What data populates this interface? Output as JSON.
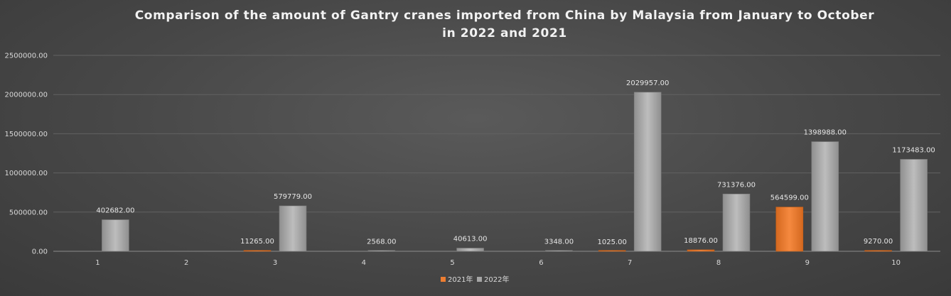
{
  "chart_data": {
    "type": "bar",
    "title_line1": "Comparison of the amount of Gantry cranes imported from China by Malaysia from January to October",
    "title_line2": "in 2022 and 2021",
    "xlabel": "",
    "ylabel": "",
    "categories": [
      "1",
      "2",
      "3",
      "4",
      "5",
      "6",
      "7",
      "8",
      "9",
      "10"
    ],
    "ylim": [
      0,
      2500000
    ],
    "y_ticks": [
      0,
      500000,
      1000000,
      1500000,
      2000000,
      2500000
    ],
    "y_tick_labels": [
      "0.00",
      "500000.00",
      "1000000.00",
      "1500000.00",
      "2000000.00",
      "2500000.00"
    ],
    "grid": true,
    "legend_position": "bottom",
    "series": [
      {
        "name": "2021年",
        "color": "#ed7d31",
        "values": [
          null,
          null,
          11265,
          null,
          null,
          null,
          1025,
          18876,
          564599,
          9270
        ],
        "labels": [
          "",
          "",
          "11265.00",
          "",
          "",
          "",
          "1025.00",
          "18876.00",
          "564599.00",
          "9270.00"
        ]
      },
      {
        "name": "2022年",
        "color": "#a5a5a5",
        "values": [
          402682,
          null,
          579779,
          2568,
          40613,
          3348,
          2029957,
          731376,
          1398988,
          1173483
        ],
        "labels": [
          "402682.00",
          "",
          "579779.00",
          "2568.00",
          "40613.00",
          "3348.00",
          "2029957.00",
          "731376.00",
          "1398988.00",
          "1173483.00"
        ]
      }
    ]
  }
}
